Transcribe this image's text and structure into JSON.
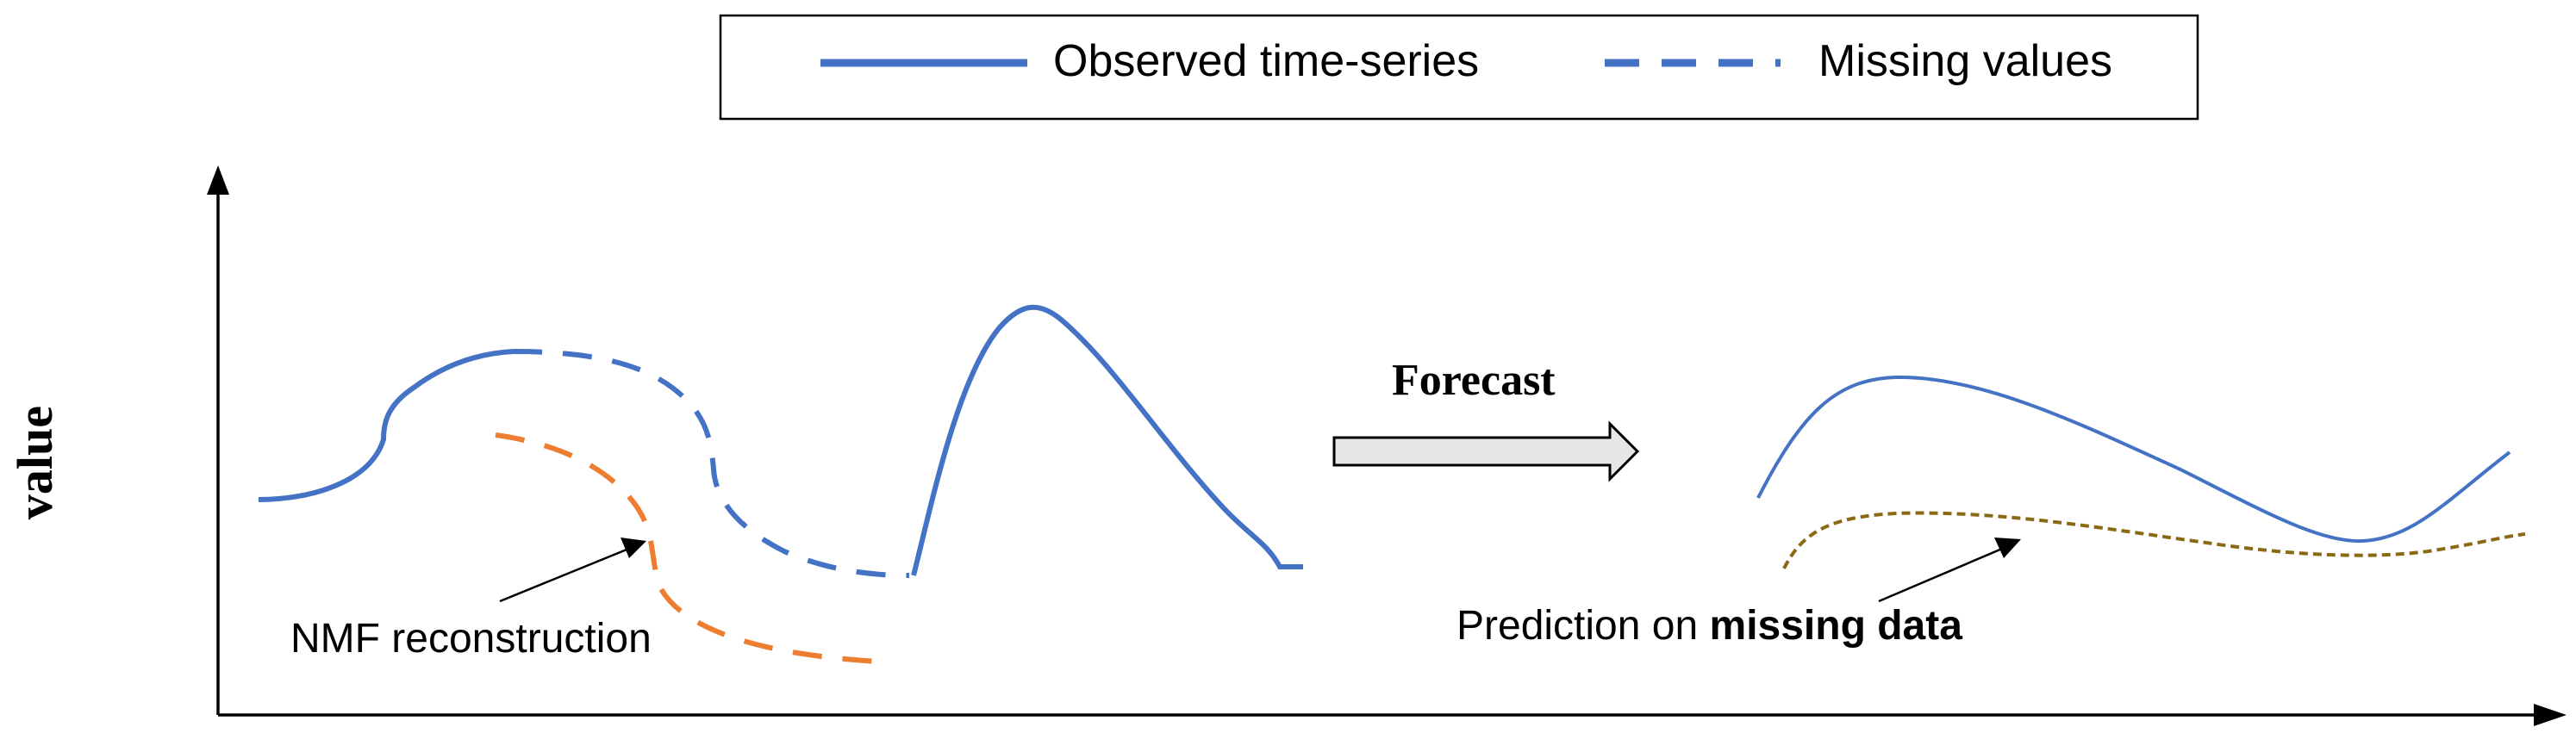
{
  "legend": {
    "observed_label": "Observed time-series",
    "missing_label": "Missing values"
  },
  "axes": {
    "ylabel": "value"
  },
  "annotations": {
    "nmf_label": "NMF reconstruction",
    "forecast_label": "Forecast",
    "prediction_prefix": "Prediction on ",
    "prediction_bold": "missing data"
  },
  "colors": {
    "observed": "#4472c4",
    "missing": "#4472c4",
    "nmf": "#ed7d31",
    "prediction": "#8b6914",
    "axis": "#000000",
    "arrow_fill": "#e6e6e6"
  }
}
